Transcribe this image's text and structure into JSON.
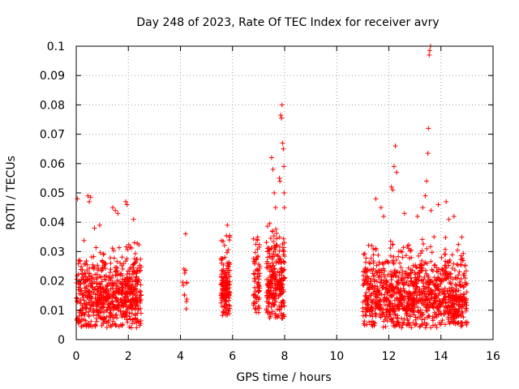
{
  "chart_data": {
    "type": "scatter",
    "title": "Day 248 of 2023, Rate Of TEC Index for receiver avry",
    "xlabel": "GPS time / hours",
    "ylabel": "ROTI / TECUs",
    "xlim": [
      0,
      16
    ],
    "ylim": [
      0,
      0.1
    ],
    "xticks": [
      0,
      2,
      4,
      6,
      8,
      10,
      12,
      14,
      16
    ],
    "xtick_labels": [
      "0",
      "2",
      "4",
      "6",
      "8",
      "10",
      "12",
      "14",
      "16"
    ],
    "yticks": [
      0,
      0.01,
      0.02,
      0.03,
      0.04,
      0.05,
      0.06,
      0.07,
      0.08,
      0.09,
      0.1
    ],
    "ytick_labels": [
      "0",
      "0.01",
      "0.02",
      "0.03",
      "0.04",
      "0.05",
      "0.06",
      "0.07",
      "0.08",
      "0.09",
      "0.1"
    ],
    "grid": true,
    "marker": "plus",
    "color": "#ff0000",
    "series": [
      {
        "name": "ROTI",
        "clusters": [
          {
            "x_range": [
              0.0,
              2.5
            ],
            "count": 700,
            "y_median": 0.0145,
            "y_spread": 0.0055,
            "y_min": 0.004,
            "y_max": 0.034
          },
          {
            "x_range": [
              4.05,
              4.25
            ],
            "count": 12,
            "y_median": 0.016,
            "y_spread": 0.005,
            "y_min": 0.007,
            "y_max": 0.025
          },
          {
            "x_range": [
              5.55,
              5.9
            ],
            "count": 160,
            "y_median": 0.018,
            "y_spread": 0.005,
            "y_min": 0.008,
            "y_max": 0.038
          },
          {
            "x_range": [
              6.8,
              7.05
            ],
            "count": 70,
            "y_median": 0.019,
            "y_spread": 0.006,
            "y_min": 0.009,
            "y_max": 0.035
          },
          {
            "x_range": [
              7.3,
              8.0
            ],
            "count": 260,
            "y_median": 0.02,
            "y_spread": 0.006,
            "y_min": 0.007,
            "y_max": 0.04
          },
          {
            "x_range": [
              11.0,
              15.0
            ],
            "count": 1100,
            "y_median": 0.0145,
            "y_spread": 0.0055,
            "y_min": 0.004,
            "y_max": 0.035
          }
        ],
        "outliers": [
          {
            "x": 0.05,
            "y": 0.048
          },
          {
            "x": 0.45,
            "y": 0.049
          },
          {
            "x": 0.5,
            "y": 0.047
          },
          {
            "x": 0.55,
            "y": 0.0485
          },
          {
            "x": 0.7,
            "y": 0.038
          },
          {
            "x": 0.9,
            "y": 0.039
          },
          {
            "x": 1.4,
            "y": 0.045
          },
          {
            "x": 1.5,
            "y": 0.044
          },
          {
            "x": 1.6,
            "y": 0.043
          },
          {
            "x": 1.9,
            "y": 0.047
          },
          {
            "x": 1.95,
            "y": 0.046
          },
          {
            "x": 2.2,
            "y": 0.041
          },
          {
            "x": 4.2,
            "y": 0.036
          },
          {
            "x": 5.8,
            "y": 0.039
          },
          {
            "x": 7.5,
            "y": 0.062
          },
          {
            "x": 7.55,
            "y": 0.058
          },
          {
            "x": 7.6,
            "y": 0.05
          },
          {
            "x": 7.65,
            "y": 0.045
          },
          {
            "x": 7.8,
            "y": 0.055
          },
          {
            "x": 7.82,
            "y": 0.054
          },
          {
            "x": 7.85,
            "y": 0.0765
          },
          {
            "x": 7.88,
            "y": 0.0755
          },
          {
            "x": 7.9,
            "y": 0.08
          },
          {
            "x": 7.92,
            "y": 0.067
          },
          {
            "x": 7.95,
            "y": 0.065
          },
          {
            "x": 7.97,
            "y": 0.059
          },
          {
            "x": 7.98,
            "y": 0.05
          },
          {
            "x": 7.99,
            "y": 0.045
          },
          {
            "x": 11.5,
            "y": 0.048
          },
          {
            "x": 11.7,
            "y": 0.045
          },
          {
            "x": 11.8,
            "y": 0.042
          },
          {
            "x": 12.1,
            "y": 0.052
          },
          {
            "x": 12.15,
            "y": 0.051
          },
          {
            "x": 12.2,
            "y": 0.059
          },
          {
            "x": 12.25,
            "y": 0.066
          },
          {
            "x": 12.3,
            "y": 0.057
          },
          {
            "x": 12.6,
            "y": 0.043
          },
          {
            "x": 13.1,
            "y": 0.042
          },
          {
            "x": 13.3,
            "y": 0.045
          },
          {
            "x": 13.4,
            "y": 0.049
          },
          {
            "x": 13.45,
            "y": 0.054
          },
          {
            "x": 13.5,
            "y": 0.0635
          },
          {
            "x": 13.52,
            "y": 0.072
          },
          {
            "x": 13.55,
            "y": 0.097
          },
          {
            "x": 13.57,
            "y": 0.0985
          },
          {
            "x": 13.6,
            "y": 0.1
          },
          {
            "x": 13.62,
            "y": 0.044
          },
          {
            "x": 13.9,
            "y": 0.046
          },
          {
            "x": 14.2,
            "y": 0.047
          },
          {
            "x": 14.3,
            "y": 0.041
          },
          {
            "x": 14.5,
            "y": 0.042
          }
        ]
      }
    ]
  }
}
